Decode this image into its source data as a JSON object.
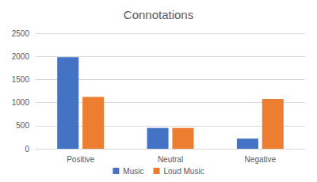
{
  "chart_data": {
    "type": "bar",
    "title": "Connotations",
    "categories": [
      "Positive",
      "Neutral",
      "Negative"
    ],
    "series": [
      {
        "name": "Music",
        "color": "#4472c4",
        "values": [
          1980,
          450,
          220
        ]
      },
      {
        "name": "Loud Music",
        "color": "#ed7d31",
        "values": [
          1120,
          450,
          1080
        ]
      }
    ],
    "ylim": [
      0,
      2500
    ],
    "yticks": [
      0,
      500,
      1000,
      1500,
      2000,
      2500
    ],
    "grid": true,
    "legend": "bottom"
  }
}
